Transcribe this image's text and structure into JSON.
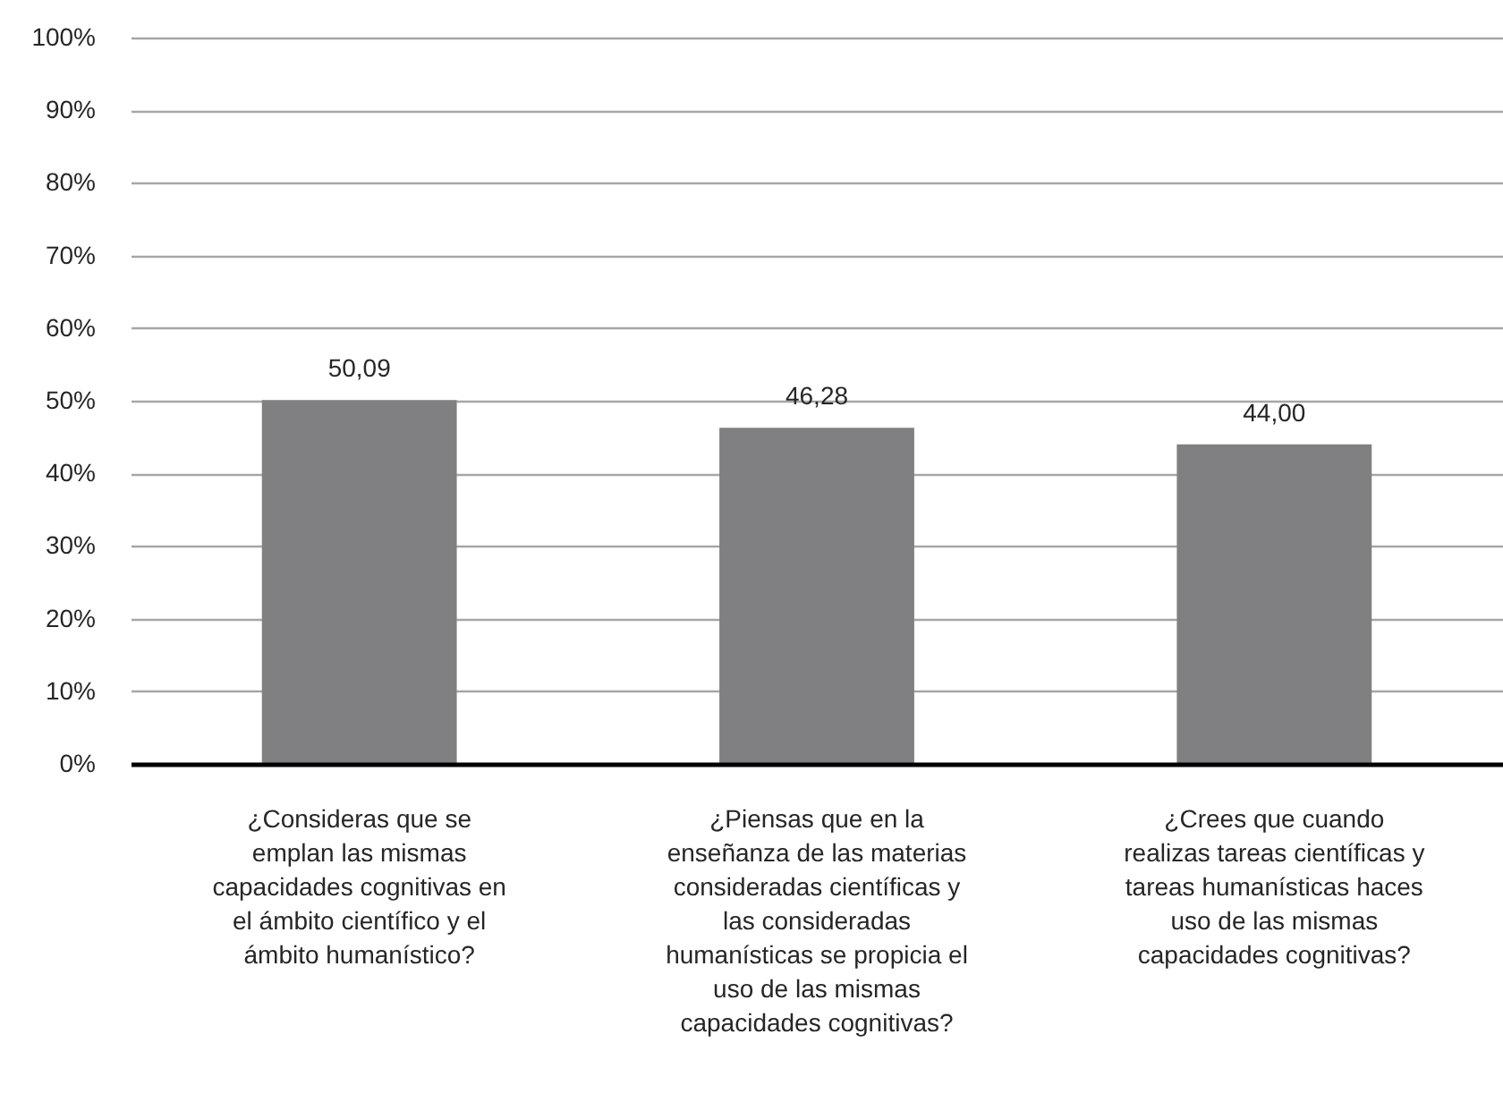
{
  "chart_data": {
    "type": "bar",
    "categories": [
      "¿Consideras que se emplan las mismas capacidades cognitivas en el ámbito científico y el ámbito humanístico?",
      "¿Piensas que en la enseñanza de las materias consideradas científicas y las consideradas humanísticas se propicia el uso de las mismas capacidades cognitivas?",
      "¿Crees que cuando realizas tareas científicas y tareas humanísticas haces uso de las mismas capacidades cognitivas?"
    ],
    "values": [
      50.09,
      46.28,
      44.0
    ],
    "value_labels": [
      "50,09",
      "46,28",
      "44,00"
    ],
    "color": "#808083",
    "ylim": [
      0,
      100
    ],
    "yticks": [
      {
        "value": 0,
        "label": "0%"
      },
      {
        "value": 10,
        "label": "10%"
      },
      {
        "value": 20,
        "label": "20%"
      },
      {
        "value": 30,
        "label": "30%"
      },
      {
        "value": 40,
        "label": "40%"
      },
      {
        "value": 50,
        "label": "50%"
      },
      {
        "value": 60,
        "label": "60%"
      },
      {
        "value": 70,
        "label": "70%"
      },
      {
        "value": 80,
        "label": "80%"
      },
      {
        "value": 90,
        "label": "90%"
      },
      {
        "value": 100,
        "label": "100%"
      }
    ],
    "grid": "y"
  }
}
